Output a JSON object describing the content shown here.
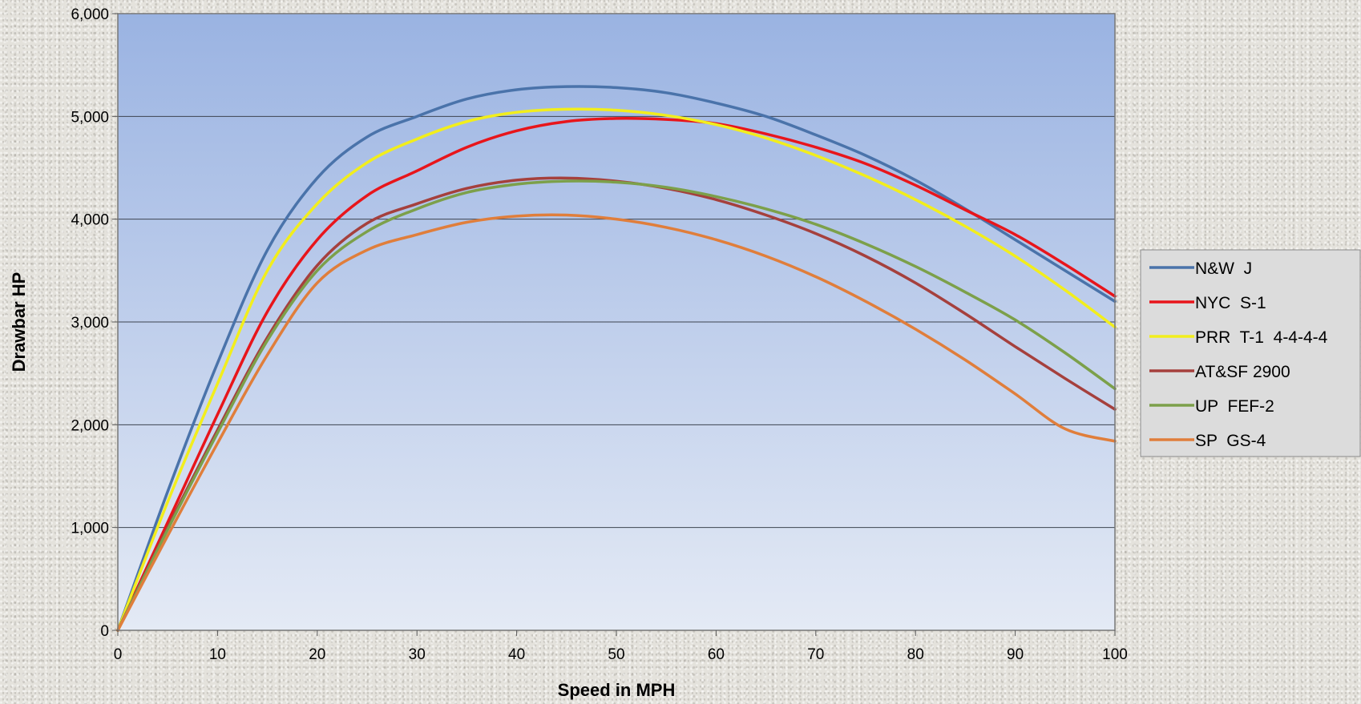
{
  "chart_data": {
    "type": "line",
    "title": "",
    "xlabel": "Speed in MPH",
    "ylabel": "Drawbar HP",
    "xlim": [
      0,
      100
    ],
    "ylim": [
      0,
      6000
    ],
    "x_ticks": [
      "0",
      "10",
      "20",
      "30",
      "40",
      "50",
      "60",
      "70",
      "80",
      "90",
      "100"
    ],
    "y_ticks": [
      "0",
      "1,000",
      "2,000",
      "3,000",
      "4,000",
      "5,000",
      "6,000"
    ],
    "grid": "horizontal",
    "legend_position": "right",
    "plot_background": [
      "#9ab3e2",
      "#e4eaf5"
    ],
    "x": [
      0,
      5,
      10,
      15,
      20,
      25,
      30,
      35,
      40,
      45,
      50,
      55,
      60,
      65,
      70,
      75,
      80,
      85,
      90,
      95,
      100
    ],
    "series": [
      {
        "name": "N&W  J",
        "color": "#4a73aa",
        "values": [
          0,
          1350,
          2600,
          3700,
          4400,
          4800,
          5000,
          5170,
          5260,
          5290,
          5280,
          5230,
          5130,
          5000,
          4820,
          4620,
          4380,
          4100,
          3800,
          3500,
          3200
        ]
      },
      {
        "name": "NYC  S-1",
        "color": "#e8151b",
        "values": [
          0,
          1050,
          2100,
          3100,
          3800,
          4230,
          4470,
          4700,
          4860,
          4950,
          4980,
          4970,
          4930,
          4830,
          4700,
          4540,
          4330,
          4090,
          3850,
          3560,
          3250
        ]
      },
      {
        "name": "PRR  T-1  4-4-4-4",
        "color": "#f2ee1c",
        "values": [
          0,
          1250,
          2400,
          3500,
          4150,
          4550,
          4780,
          4950,
          5040,
          5070,
          5060,
          5010,
          4920,
          4790,
          4620,
          4420,
          4190,
          3930,
          3640,
          3310,
          2950
        ]
      },
      {
        "name": "AT&SF 2900",
        "color": "#a5403d",
        "values": [
          0,
          1000,
          1950,
          2850,
          3550,
          3960,
          4150,
          4300,
          4380,
          4400,
          4370,
          4300,
          4190,
          4040,
          3860,
          3640,
          3380,
          3080,
          2760,
          2450,
          2150
        ]
      },
      {
        "name": "UP  FEF-2",
        "color": "#7ca04a",
        "values": [
          0,
          980,
          1920,
          2820,
          3500,
          3880,
          4100,
          4260,
          4340,
          4370,
          4360,
          4310,
          4220,
          4100,
          3950,
          3760,
          3540,
          3290,
          3020,
          2700,
          2350
        ]
      },
      {
        "name": "SP  GS-4",
        "color": "#e07e3b",
        "values": [
          0,
          920,
          1820,
          2680,
          3380,
          3700,
          3850,
          3970,
          4030,
          4040,
          4000,
          3920,
          3800,
          3640,
          3440,
          3200,
          2930,
          2630,
          2300,
          1960,
          1840
        ]
      }
    ]
  }
}
